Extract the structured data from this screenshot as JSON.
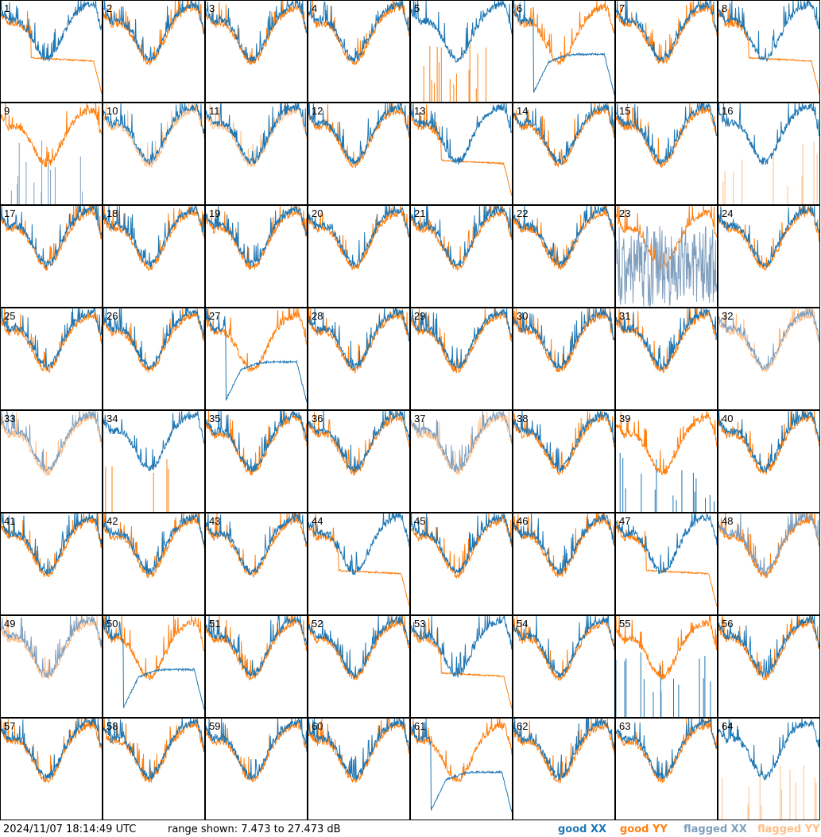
{
  "footer": {
    "timestamp": "2024/11/07 18:14:49 UTC",
    "range_text": "range shown: 7.473 to 27.473 dB"
  },
  "legend": {
    "good_xx": "good XX",
    "good_yy": "good YY",
    "flagged_xx": "flagged XX",
    "flagged_yy": "flagged YY"
  },
  "colors": {
    "good_xx": "#1f77b4",
    "good_yy": "#ff7f0e",
    "flagged_xx": "#7f9fbf",
    "flagged_yy": "#ffbf87",
    "border": "#000000",
    "background": "#ffffff"
  },
  "chart_data": {
    "type": "line",
    "grid": "8x8 small multiples",
    "y_range_db": [
      7.473,
      27.473
    ],
    "panels": [
      {
        "label": "1",
        "xx": "good",
        "yy": "good",
        "shape": "yy_drop"
      },
      {
        "label": "2",
        "xx": "good",
        "yy": "good",
        "shape": "normal"
      },
      {
        "label": "3",
        "xx": "good",
        "yy": "good",
        "shape": "normal"
      },
      {
        "label": "4",
        "xx": "good",
        "yy": "good",
        "shape": "normal"
      },
      {
        "label": "5",
        "xx": "good",
        "yy": "good",
        "shape": "yy_spikes"
      },
      {
        "label": "6",
        "xx": "good",
        "yy": "good",
        "shape": "xx_drop"
      },
      {
        "label": "7",
        "xx": "good",
        "yy": "good",
        "shape": "normal"
      },
      {
        "label": "8",
        "xx": "good",
        "yy": "good",
        "shape": "yy_drop"
      },
      {
        "label": "9",
        "xx": "flagged",
        "yy": "good",
        "shape": "xx_spikes"
      },
      {
        "label": "10",
        "xx": "good",
        "yy": "flagged",
        "shape": "normal"
      },
      {
        "label": "11",
        "xx": "good",
        "yy": "flagged",
        "shape": "normal"
      },
      {
        "label": "12",
        "xx": "good",
        "yy": "good",
        "shape": "normal"
      },
      {
        "label": "13",
        "xx": "good",
        "yy": "good",
        "shape": "yy_drop"
      },
      {
        "label": "14",
        "xx": "good",
        "yy": "good",
        "shape": "normal"
      },
      {
        "label": "15",
        "xx": "good",
        "yy": "good",
        "shape": "normal"
      },
      {
        "label": "16",
        "xx": "good",
        "yy": "flagged",
        "shape": "yy_spikes"
      },
      {
        "label": "17",
        "xx": "good",
        "yy": "good",
        "shape": "normal"
      },
      {
        "label": "18",
        "xx": "good",
        "yy": "good",
        "shape": "normal"
      },
      {
        "label": "19",
        "xx": "good",
        "yy": "good",
        "shape": "normal"
      },
      {
        "label": "20",
        "xx": "good",
        "yy": "good",
        "shape": "normal"
      },
      {
        "label": "21",
        "xx": "good",
        "yy": "good",
        "shape": "normal"
      },
      {
        "label": "22",
        "xx": "good",
        "yy": "good",
        "shape": "normal"
      },
      {
        "label": "23",
        "xx": "flagged",
        "yy": "good",
        "shape": "xx_noise"
      },
      {
        "label": "24",
        "xx": "good",
        "yy": "good",
        "shape": "normal"
      },
      {
        "label": "25",
        "xx": "good",
        "yy": "good",
        "shape": "normal"
      },
      {
        "label": "26",
        "xx": "good",
        "yy": "good",
        "shape": "normal"
      },
      {
        "label": "27",
        "xx": "good",
        "yy": "good",
        "shape": "xx_drop"
      },
      {
        "label": "28",
        "xx": "good",
        "yy": "good",
        "shape": "normal"
      },
      {
        "label": "29",
        "xx": "good",
        "yy": "good",
        "shape": "normal"
      },
      {
        "label": "30",
        "xx": "good",
        "yy": "good",
        "shape": "normal"
      },
      {
        "label": "31",
        "xx": "good",
        "yy": "good",
        "shape": "normal"
      },
      {
        "label": "32",
        "xx": "flagged",
        "yy": "flagged",
        "shape": "normal"
      },
      {
        "label": "33",
        "xx": "flagged",
        "yy": "flagged",
        "shape": "normal"
      },
      {
        "label": "34",
        "xx": "good",
        "yy": "good",
        "shape": "yy_spikes"
      },
      {
        "label": "35",
        "xx": "good",
        "yy": "good",
        "shape": "normal"
      },
      {
        "label": "36",
        "xx": "good",
        "yy": "good",
        "shape": "normal"
      },
      {
        "label": "37",
        "xx": "flagged",
        "yy": "flagged",
        "shape": "normal"
      },
      {
        "label": "38",
        "xx": "good",
        "yy": "good",
        "shape": "normal"
      },
      {
        "label": "39",
        "xx": "good",
        "yy": "good",
        "shape": "xx_spikes"
      },
      {
        "label": "40",
        "xx": "good",
        "yy": "good",
        "shape": "normal"
      },
      {
        "label": "41",
        "xx": "good",
        "yy": "good",
        "shape": "normal"
      },
      {
        "label": "42",
        "xx": "good",
        "yy": "good",
        "shape": "normal"
      },
      {
        "label": "43",
        "xx": "good",
        "yy": "good",
        "shape": "normal"
      },
      {
        "label": "44",
        "xx": "good",
        "yy": "good",
        "shape": "yy_drop"
      },
      {
        "label": "45",
        "xx": "good",
        "yy": "good",
        "shape": "normal"
      },
      {
        "label": "46",
        "xx": "good",
        "yy": "good",
        "shape": "normal"
      },
      {
        "label": "47",
        "xx": "good",
        "yy": "good",
        "shape": "yy_drop"
      },
      {
        "label": "48",
        "xx": "flagged",
        "yy": "good",
        "shape": "normal"
      },
      {
        "label": "49",
        "xx": "flagged",
        "yy": "flagged",
        "shape": "normal"
      },
      {
        "label": "50",
        "xx": "good",
        "yy": "good",
        "shape": "xx_drop"
      },
      {
        "label": "51",
        "xx": "good",
        "yy": "good",
        "shape": "normal"
      },
      {
        "label": "52",
        "xx": "good",
        "yy": "good",
        "shape": "normal"
      },
      {
        "label": "53",
        "xx": "good",
        "yy": "good",
        "shape": "yy_drop"
      },
      {
        "label": "54",
        "xx": "good",
        "yy": "good",
        "shape": "normal"
      },
      {
        "label": "55",
        "xx": "good",
        "yy": "good",
        "shape": "xx_spikes"
      },
      {
        "label": "56",
        "xx": "good",
        "yy": "good",
        "shape": "normal"
      },
      {
        "label": "57",
        "xx": "good",
        "yy": "good",
        "shape": "normal"
      },
      {
        "label": "58",
        "xx": "good",
        "yy": "good",
        "shape": "normal"
      },
      {
        "label": "59",
        "xx": "good",
        "yy": "good",
        "shape": "normal"
      },
      {
        "label": "60",
        "xx": "good",
        "yy": "good",
        "shape": "normal"
      },
      {
        "label": "61",
        "xx": "good",
        "yy": "good",
        "shape": "xx_drop"
      },
      {
        "label": "62",
        "xx": "good",
        "yy": "good",
        "shape": "normal"
      },
      {
        "label": "63",
        "xx": "good",
        "yy": "good",
        "shape": "normal"
      },
      {
        "label": "64",
        "xx": "good",
        "yy": "flagged",
        "shape": "yy_spikes"
      }
    ]
  }
}
